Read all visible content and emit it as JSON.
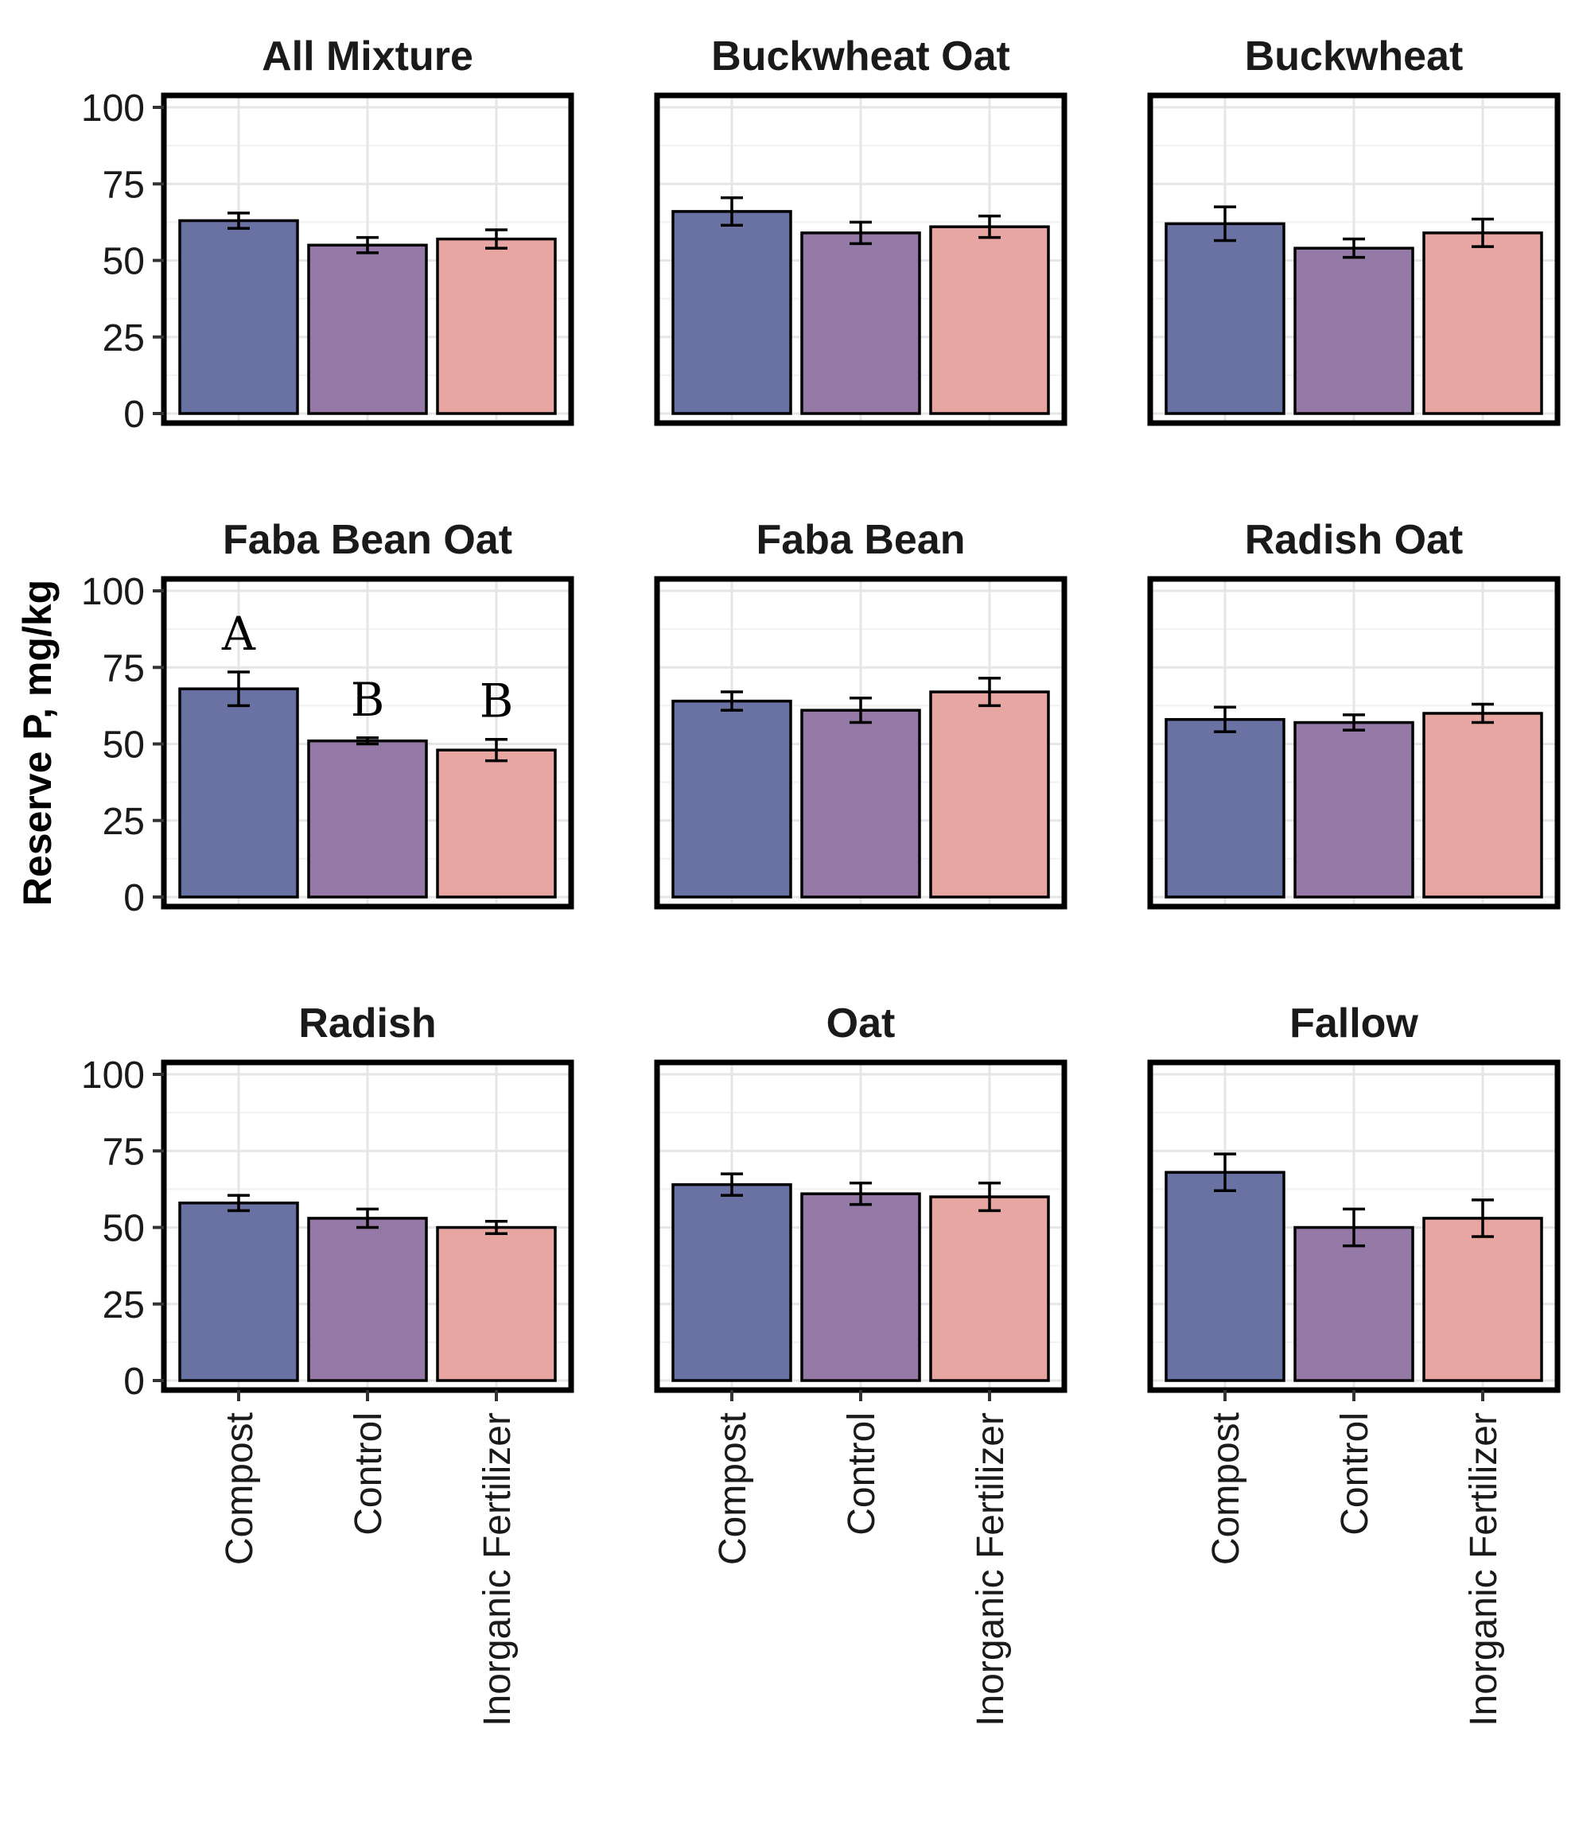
{
  "chart_data": {
    "type": "bar",
    "ylabel": "Reserve P, mg/kg",
    "xlabel": "",
    "ylim": [
      0,
      100
    ],
    "yticks": [
      0,
      25,
      50,
      75,
      100
    ],
    "categories": [
      "Compost",
      "Control",
      "Inorganic Fertilizer"
    ],
    "colors": [
      "#6a71a3",
      "#9478a6",
      "#e8a6a3"
    ],
    "grid": true,
    "facets": [
      {
        "title": "All Mixture",
        "values": [
          63,
          55,
          57
        ],
        "errors": [
          2.5,
          2.5,
          3
        ]
      },
      {
        "title": "Buckwheat Oat",
        "values": [
          66,
          59,
          61
        ],
        "errors": [
          4.5,
          3.5,
          3.5
        ]
      },
      {
        "title": "Buckwheat",
        "values": [
          62,
          54,
          59
        ],
        "errors": [
          5.5,
          3,
          4.5
        ]
      },
      {
        "title": "Faba Bean Oat",
        "values": [
          68,
          51,
          48
        ],
        "errors": [
          5.5,
          1,
          3.5
        ],
        "letters": [
          "A",
          "B",
          "B"
        ]
      },
      {
        "title": "Faba Bean",
        "values": [
          64,
          61,
          67
        ],
        "errors": [
          3,
          4,
          4.5
        ]
      },
      {
        "title": "Radish Oat",
        "values": [
          58,
          57,
          60
        ],
        "errors": [
          4,
          2.5,
          3
        ]
      },
      {
        "title": "Radish",
        "values": [
          58,
          53,
          50
        ],
        "errors": [
          2.5,
          3,
          2
        ]
      },
      {
        "title": "Oat",
        "values": [
          64,
          61,
          60
        ],
        "errors": [
          3.5,
          3.5,
          4.5
        ]
      },
      {
        "title": "Fallow",
        "values": [
          68,
          50,
          53
        ],
        "errors": [
          6,
          6,
          6
        ]
      }
    ]
  }
}
